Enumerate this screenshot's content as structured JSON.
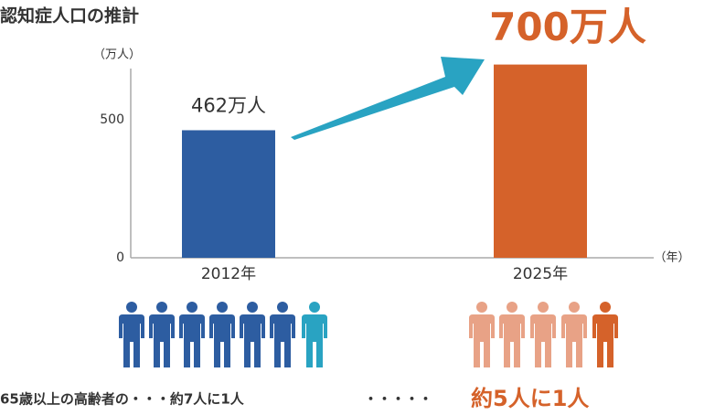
{
  "chart_data": {
    "type": "bar",
    "title": "認知症人口の推計",
    "y_label": "（万人）",
    "x_label": "（年）",
    "categories": [
      "2012年",
      "2025年"
    ],
    "values": [
      462,
      700
    ],
    "value_labels": [
      "462万人",
      "700万人"
    ],
    "colors": [
      "#2d5da1",
      "#d5622a"
    ],
    "ylim": [
      0,
      700
    ],
    "yticks": [
      0,
      500
    ],
    "grid": false,
    "annotations": [
      "65歳以上の高齢者の・・・約7人に1人",
      "・・・・・",
      "約5人に1人"
    ]
  }
}
